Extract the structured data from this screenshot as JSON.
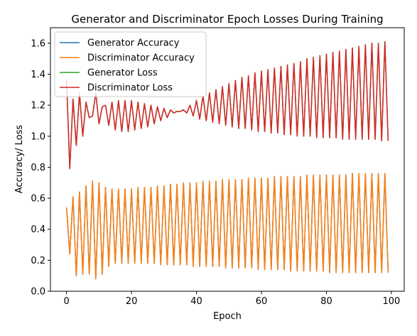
{
  "chart_data": {
    "type": "line",
    "title": "Generator and Discriminator Epoch Losses During Training",
    "xlabel": "Epoch",
    "ylabel": "Accuracy/ Loss",
    "xlim": [
      -4.95,
      103.95
    ],
    "ylim": [
      0.0,
      1.7
    ],
    "xticks": [
      0,
      20,
      40,
      60,
      80,
      100
    ],
    "yticks": [
      0.0,
      0.2,
      0.4,
      0.6,
      0.8,
      1.0,
      1.2,
      1.4,
      1.6
    ],
    "xtick_labels": [
      "0",
      "20",
      "40",
      "60",
      "80",
      "100"
    ],
    "ytick_labels": [
      "0.0",
      "0.2",
      "0.4",
      "0.6",
      "0.8",
      "1.0",
      "1.2",
      "1.4",
      "1.6"
    ],
    "grid": false,
    "legend_position": "top-left",
    "legend": [
      "Generator Accuracy",
      "Discriminator Accuracy",
      "Generator Loss",
      "Discriminator Loss"
    ],
    "series": [
      {
        "name": "Generator Accuracy",
        "color": "#1f77b4",
        "x": [
          0,
          1,
          2,
          3,
          4,
          5,
          6,
          7,
          8,
          9,
          10,
          11,
          12,
          13,
          14,
          15,
          16,
          17,
          18,
          19,
          20,
          21,
          22,
          23,
          24,
          25,
          26,
          27,
          28,
          29,
          30,
          31,
          32,
          33,
          34,
          35,
          36,
          37,
          38,
          39,
          40,
          41,
          42,
          43,
          44,
          45,
          46,
          47,
          48,
          49,
          50,
          51,
          52,
          53,
          54,
          55,
          56,
          57,
          58,
          59,
          60,
          61,
          62,
          63,
          64,
          65,
          66,
          67,
          68,
          69,
          70,
          71,
          72,
          73,
          74,
          75,
          76,
          77,
          78,
          79,
          80,
          81,
          82,
          83,
          84,
          85,
          86,
          87,
          88,
          89,
          90,
          91,
          92,
          93,
          94,
          95,
          96,
          97,
          98,
          99
        ],
        "y": [
          0.54,
          0.24,
          0.61,
          0.1,
          0.64,
          0.11,
          0.68,
          0.11,
          0.71,
          0.08,
          0.7,
          0.11,
          0.67,
          0.16,
          0.66,
          0.18,
          0.66,
          0.18,
          0.66,
          0.18,
          0.66,
          0.18,
          0.67,
          0.18,
          0.67,
          0.18,
          0.67,
          0.18,
          0.68,
          0.17,
          0.68,
          0.17,
          0.69,
          0.17,
          0.69,
          0.17,
          0.7,
          0.17,
          0.7,
          0.16,
          0.7,
          0.16,
          0.71,
          0.16,
          0.71,
          0.16,
          0.71,
          0.16,
          0.72,
          0.15,
          0.72,
          0.15,
          0.72,
          0.15,
          0.72,
          0.15,
          0.73,
          0.15,
          0.73,
          0.14,
          0.73,
          0.14,
          0.73,
          0.14,
          0.74,
          0.14,
          0.74,
          0.14,
          0.74,
          0.13,
          0.74,
          0.13,
          0.74,
          0.13,
          0.75,
          0.13,
          0.75,
          0.13,
          0.75,
          0.13,
          0.75,
          0.12,
          0.75,
          0.12,
          0.75,
          0.12,
          0.75,
          0.12,
          0.76,
          0.12,
          0.76,
          0.12,
          0.76,
          0.12,
          0.76,
          0.12,
          0.76,
          0.12,
          0.76,
          0.12
        ]
      },
      {
        "name": "Discriminator Accuracy",
        "color": "#ff7f0e",
        "x": [
          0,
          1,
          2,
          3,
          4,
          5,
          6,
          7,
          8,
          9,
          10,
          11,
          12,
          13,
          14,
          15,
          16,
          17,
          18,
          19,
          20,
          21,
          22,
          23,
          24,
          25,
          26,
          27,
          28,
          29,
          30,
          31,
          32,
          33,
          34,
          35,
          36,
          37,
          38,
          39,
          40,
          41,
          42,
          43,
          44,
          45,
          46,
          47,
          48,
          49,
          50,
          51,
          52,
          53,
          54,
          55,
          56,
          57,
          58,
          59,
          60,
          61,
          62,
          63,
          64,
          65,
          66,
          67,
          68,
          69,
          70,
          71,
          72,
          73,
          74,
          75,
          76,
          77,
          78,
          79,
          80,
          81,
          82,
          83,
          84,
          85,
          86,
          87,
          88,
          89,
          90,
          91,
          92,
          93,
          94,
          95,
          96,
          97,
          98,
          99
        ],
        "y": [
          0.54,
          0.24,
          0.61,
          0.1,
          0.64,
          0.11,
          0.68,
          0.11,
          0.71,
          0.08,
          0.7,
          0.11,
          0.67,
          0.16,
          0.66,
          0.18,
          0.66,
          0.18,
          0.66,
          0.18,
          0.66,
          0.18,
          0.67,
          0.18,
          0.67,
          0.18,
          0.67,
          0.18,
          0.68,
          0.17,
          0.68,
          0.17,
          0.69,
          0.17,
          0.69,
          0.17,
          0.7,
          0.17,
          0.7,
          0.16,
          0.7,
          0.16,
          0.71,
          0.16,
          0.71,
          0.16,
          0.71,
          0.16,
          0.72,
          0.15,
          0.72,
          0.15,
          0.72,
          0.15,
          0.72,
          0.15,
          0.73,
          0.15,
          0.73,
          0.14,
          0.73,
          0.14,
          0.73,
          0.14,
          0.74,
          0.14,
          0.74,
          0.14,
          0.74,
          0.13,
          0.74,
          0.13,
          0.74,
          0.13,
          0.75,
          0.13,
          0.75,
          0.13,
          0.75,
          0.13,
          0.75,
          0.12,
          0.75,
          0.12,
          0.75,
          0.12,
          0.75,
          0.12,
          0.76,
          0.12,
          0.76,
          0.12,
          0.76,
          0.12,
          0.76,
          0.12,
          0.76,
          0.12,
          0.76,
          0.12
        ]
      },
      {
        "name": "Generator Loss",
        "color": "#2ca02c",
        "x": [
          0,
          1,
          2,
          3,
          4,
          5,
          6,
          7,
          8,
          9,
          10,
          11,
          12,
          13,
          14,
          15,
          16,
          17,
          18,
          19,
          20,
          21,
          22,
          23,
          24,
          25,
          26,
          27,
          28,
          29,
          30,
          31,
          32,
          33,
          34,
          35,
          36,
          37,
          38,
          39,
          40,
          41,
          42,
          43,
          44,
          45,
          46,
          47,
          48,
          49,
          50,
          51,
          52,
          53,
          54,
          55,
          56,
          57,
          58,
          59,
          60,
          61,
          62,
          63,
          64,
          65,
          66,
          67,
          68,
          69,
          70,
          71,
          72,
          73,
          74,
          75,
          76,
          77,
          78,
          79,
          80,
          81,
          82,
          83,
          84,
          85,
          86,
          87,
          88,
          89,
          90,
          91,
          92,
          93,
          94,
          95,
          96,
          97,
          98,
          99
        ],
        "y": [
          1.37,
          0.79,
          1.24,
          0.94,
          1.28,
          1.0,
          1.22,
          1.12,
          1.13,
          1.28,
          1.08,
          1.19,
          1.2,
          1.07,
          1.22,
          1.04,
          1.23,
          1.03,
          1.23,
          1.03,
          1.23,
          1.04,
          1.22,
          1.05,
          1.21,
          1.06,
          1.2,
          1.08,
          1.19,
          1.1,
          1.18,
          1.12,
          1.17,
          1.15,
          1.16,
          1.16,
          1.17,
          1.15,
          1.2,
          1.13,
          1.23,
          1.11,
          1.26,
          1.1,
          1.28,
          1.09,
          1.3,
          1.08,
          1.32,
          1.07,
          1.34,
          1.06,
          1.36,
          1.05,
          1.38,
          1.05,
          1.39,
          1.04,
          1.41,
          1.03,
          1.42,
          1.03,
          1.43,
          1.02,
          1.44,
          1.02,
          1.45,
          1.01,
          1.46,
          1.01,
          1.47,
          1.0,
          1.48,
          1.0,
          1.5,
          1.0,
          1.51,
          0.99,
          1.52,
          0.99,
          1.53,
          0.99,
          1.54,
          0.99,
          1.55,
          0.98,
          1.56,
          0.98,
          1.57,
          0.98,
          1.58,
          0.98,
          1.59,
          0.98,
          1.6,
          0.98,
          1.6,
          0.97,
          1.61,
          0.97
        ]
      },
      {
        "name": "Discriminator Loss",
        "color": "#d62728",
        "x": [
          0,
          1,
          2,
          3,
          4,
          5,
          6,
          7,
          8,
          9,
          10,
          11,
          12,
          13,
          14,
          15,
          16,
          17,
          18,
          19,
          20,
          21,
          22,
          23,
          24,
          25,
          26,
          27,
          28,
          29,
          30,
          31,
          32,
          33,
          34,
          35,
          36,
          37,
          38,
          39,
          40,
          41,
          42,
          43,
          44,
          45,
          46,
          47,
          48,
          49,
          50,
          51,
          52,
          53,
          54,
          55,
          56,
          57,
          58,
          59,
          60,
          61,
          62,
          63,
          64,
          65,
          66,
          67,
          68,
          69,
          70,
          71,
          72,
          73,
          74,
          75,
          76,
          77,
          78,
          79,
          80,
          81,
          82,
          83,
          84,
          85,
          86,
          87,
          88,
          89,
          90,
          91,
          92,
          93,
          94,
          95,
          96,
          97,
          98,
          99
        ],
        "y": [
          1.37,
          0.79,
          1.24,
          0.94,
          1.28,
          1.0,
          1.22,
          1.12,
          1.13,
          1.28,
          1.08,
          1.19,
          1.2,
          1.07,
          1.22,
          1.04,
          1.23,
          1.03,
          1.23,
          1.03,
          1.23,
          1.04,
          1.22,
          1.05,
          1.21,
          1.06,
          1.2,
          1.08,
          1.19,
          1.1,
          1.18,
          1.12,
          1.17,
          1.15,
          1.16,
          1.16,
          1.17,
          1.15,
          1.2,
          1.13,
          1.23,
          1.11,
          1.26,
          1.1,
          1.28,
          1.09,
          1.3,
          1.08,
          1.32,
          1.07,
          1.34,
          1.06,
          1.36,
          1.05,
          1.38,
          1.05,
          1.39,
          1.04,
          1.41,
          1.03,
          1.42,
          1.03,
          1.43,
          1.02,
          1.44,
          1.02,
          1.45,
          1.01,
          1.46,
          1.01,
          1.47,
          1.0,
          1.48,
          1.0,
          1.5,
          1.0,
          1.51,
          0.99,
          1.52,
          0.99,
          1.53,
          0.99,
          1.54,
          0.99,
          1.55,
          0.98,
          1.56,
          0.98,
          1.57,
          0.98,
          1.58,
          0.98,
          1.59,
          0.98,
          1.6,
          0.98,
          1.6,
          0.97,
          1.61,
          0.97
        ]
      }
    ]
  }
}
